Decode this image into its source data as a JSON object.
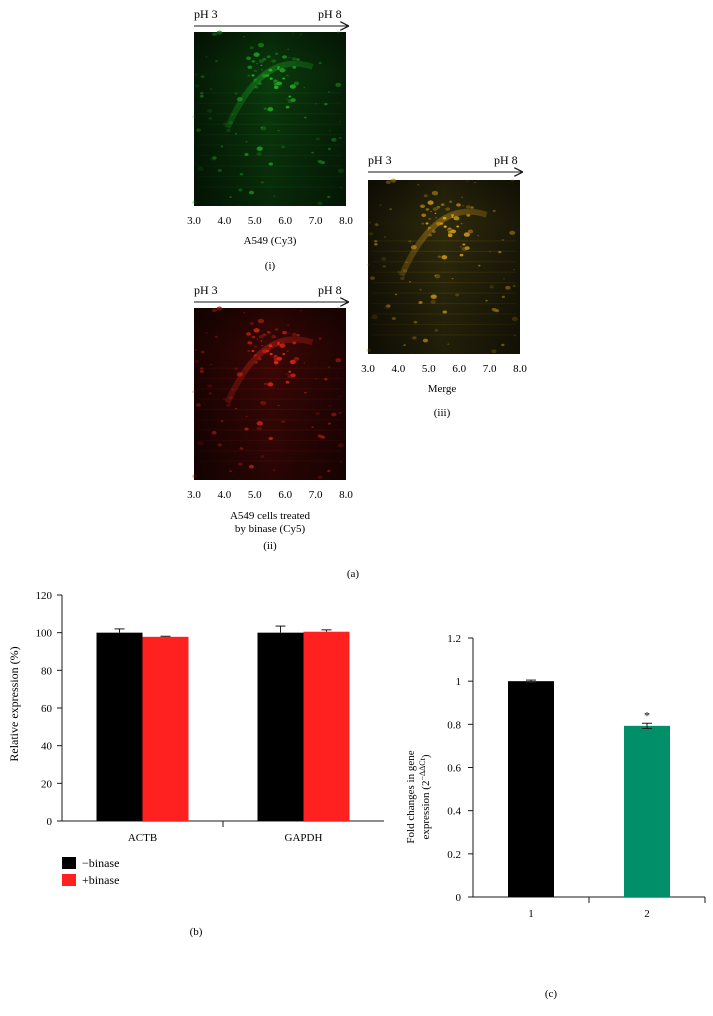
{
  "panel_a": {
    "gel_i": {
      "ph_left": "pH 3",
      "ph_right": "pH 8",
      "x_ticks": [
        "3.0",
        "4.0",
        "5.0",
        "6.0",
        "7.0",
        "8.0"
      ],
      "label": "A549 (Cy3)",
      "panel_label": "(i)",
      "color": "#22c82a"
    },
    "gel_ii": {
      "ph_left": "pH 3",
      "ph_right": "pH 8",
      "x_ticks": [
        "3.0",
        "4.0",
        "5.0",
        "6.0",
        "7.0",
        "8.0"
      ],
      "label_line1": "A549 cells treated",
      "label_line2": "by binase (Cy5)",
      "panel_label": "(ii)",
      "color": "#ff2a1a"
    },
    "gel_iii": {
      "ph_left": "pH 3",
      "ph_right": "pH 8",
      "x_ticks": [
        "3.0",
        "4.0",
        "5.0",
        "6.0",
        "7.0",
        "8.0"
      ],
      "label": "Merge",
      "panel_label": "(iii)",
      "color": "#f2b21c"
    },
    "caption": "(a)"
  },
  "chart_data": [
    {
      "type": "bar",
      "panel": "b",
      "categories": [
        "ACTB",
        "GAPDH"
      ],
      "series": [
        {
          "name": "−binase",
          "color": "#000000",
          "values": [
            100,
            100
          ],
          "errors": [
            2,
            3.5
          ]
        },
        {
          "name": "+binase",
          "color": "#ff2020",
          "values": [
            97.8,
            100.5
          ],
          "errors": [
            0.3,
            1
          ]
        }
      ],
      "ylabel": "Relative expression (%)",
      "ylim": [
        0,
        120
      ],
      "yticks": [
        "0",
        "20",
        "40",
        "60",
        "80",
        "100",
        "120"
      ],
      "legend_position": "bottom-left",
      "caption": "(b)"
    },
    {
      "type": "bar",
      "panel": "c",
      "categories": [
        "1",
        "2"
      ],
      "values": [
        1.0,
        0.793
      ],
      "errors": [
        0.005,
        0.012
      ],
      "colors": [
        "#000000",
        "#008f68"
      ],
      "annotations": [
        "",
        "*"
      ],
      "ylabel_line1": "Fold changes in gene",
      "ylabel_line2": "expression (2",
      "ylabel_sup": "−ΔΔCt",
      "ylabel_close": ")",
      "ylim": [
        0,
        1.2
      ],
      "yticks": [
        "0",
        "0.2",
        "0.4",
        "0.6",
        "0.8",
        "1",
        "1.2"
      ],
      "caption": "(c)"
    }
  ]
}
